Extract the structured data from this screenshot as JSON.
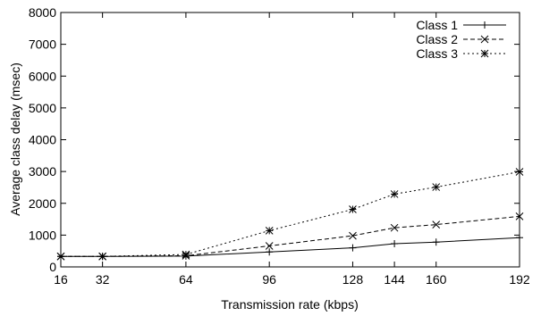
{
  "chart_data": {
    "type": "line",
    "xlabel": "Transmission rate (kbps)",
    "ylabel": "Average class delay (msec)",
    "xlim": [
      16,
      192
    ],
    "ylim": [
      0,
      8000
    ],
    "xticks": [
      16,
      32,
      64,
      96,
      128,
      144,
      160,
      192
    ],
    "yticks": [
      0,
      1000,
      2000,
      3000,
      4000,
      5000,
      6000,
      7000,
      8000
    ],
    "grid": false,
    "legend_position": "top-right",
    "x": [
      16,
      32,
      64,
      96,
      128,
      144,
      160,
      192
    ],
    "series": [
      {
        "name": "Class 1",
        "marker": "plus",
        "dash": "solid",
        "values": [
          330,
          330,
          340,
          470,
          600,
          730,
          780,
          920
        ]
      },
      {
        "name": "Class 2",
        "marker": "cross",
        "dash": "dashed",
        "values": [
          330,
          330,
          350,
          660,
          980,
          1230,
          1330,
          1590
        ]
      },
      {
        "name": "Class 3",
        "marker": "star",
        "dash": "dotted",
        "values": [
          330,
          330,
          390,
          1140,
          1810,
          2290,
          2510,
          2990
        ]
      }
    ]
  }
}
